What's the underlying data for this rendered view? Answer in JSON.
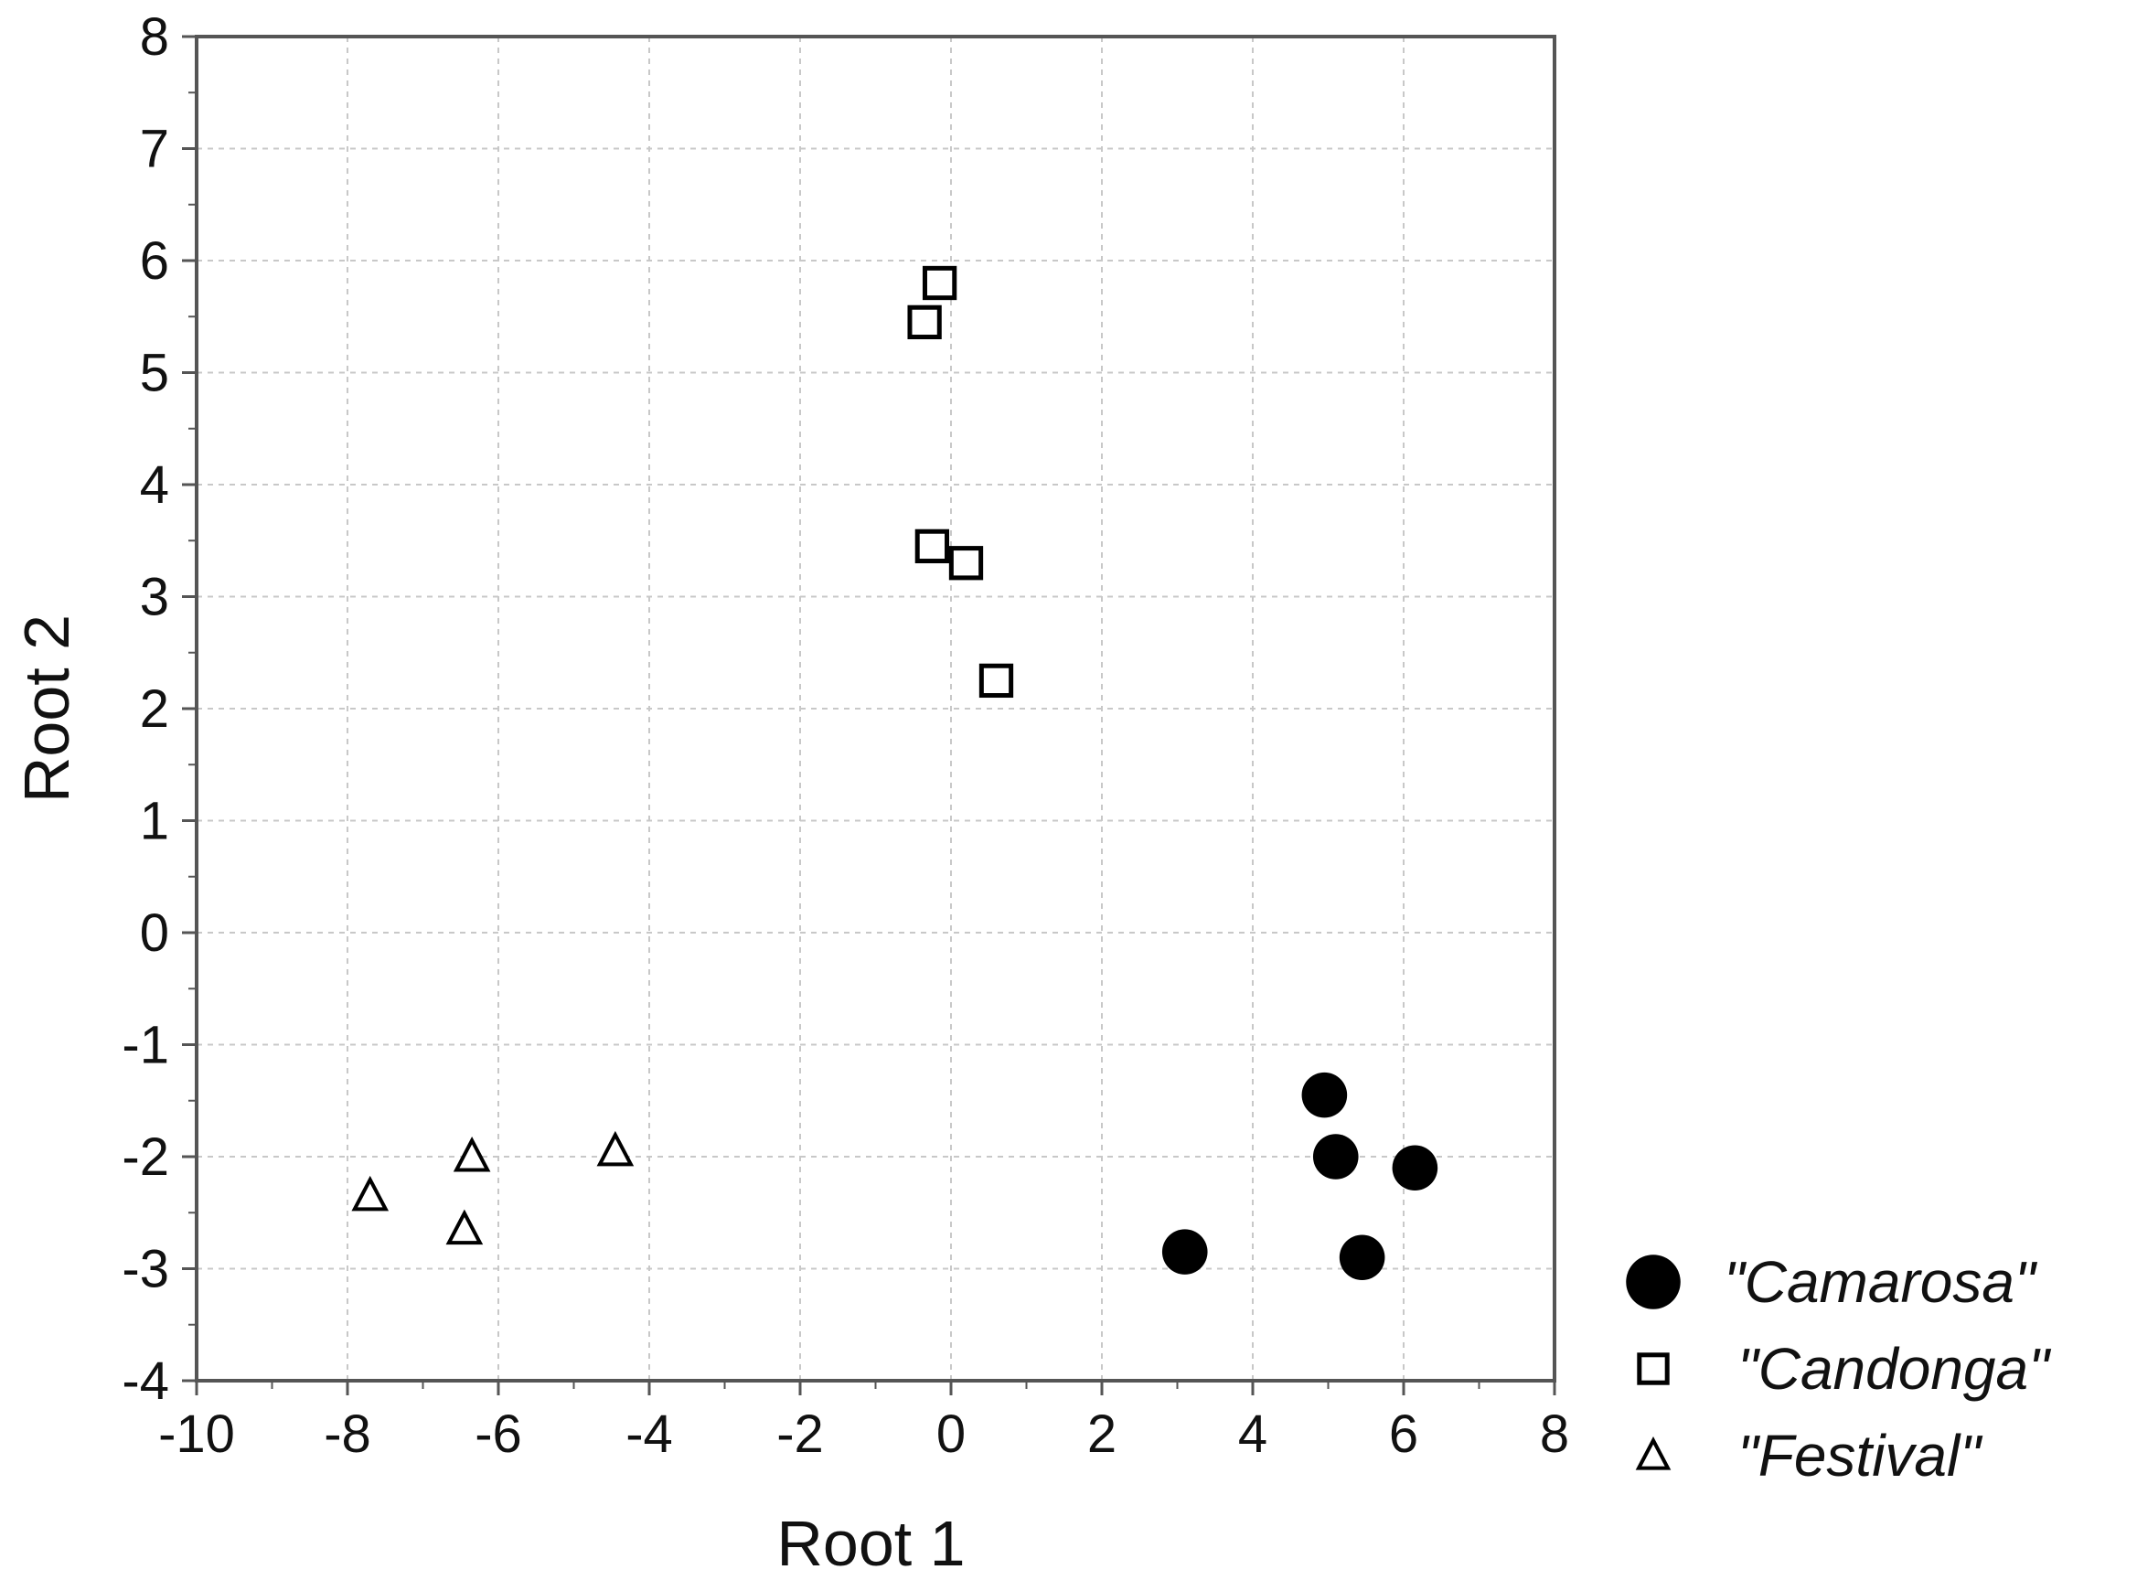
{
  "chart_data": {
    "type": "scatter",
    "title": "",
    "xlabel": "Root 1",
    "ylabel": "Root 2",
    "xlim": [
      -10,
      8
    ],
    "ylim": [
      -4,
      8
    ],
    "x_ticks": [
      -10,
      -8,
      -6,
      -4,
      -2,
      0,
      2,
      4,
      6,
      8
    ],
    "y_ticks": [
      -4,
      -3,
      -2,
      -1,
      0,
      1,
      2,
      3,
      4,
      5,
      6,
      7,
      8
    ],
    "x_tick_labels": [
      "-10",
      "-8",
      "-6",
      "-4",
      "-2",
      "0",
      "2",
      "4",
      "6",
      "8"
    ],
    "y_tick_labels": [
      "-4",
      "-3",
      "-2",
      "-1",
      "0",
      "1",
      "2",
      "3",
      "4",
      "5",
      "6",
      "7",
      "8"
    ],
    "grid": true,
    "legend_position": "bottom-right, outside plot",
    "series": [
      {
        "name": "\"Camarosa\"",
        "marker": "filled-circle",
        "color": "#000000",
        "points": [
          {
            "x": 4.95,
            "y": -1.45
          },
          {
            "x": 5.1,
            "y": -2.0
          },
          {
            "x": 6.15,
            "y": -2.1
          },
          {
            "x": 5.45,
            "y": -2.9
          },
          {
            "x": 3.1,
            "y": -2.85
          }
        ]
      },
      {
        "name": "\"Candonga\"",
        "marker": "open-square",
        "color": "#000000",
        "points": [
          {
            "x": -0.15,
            "y": 5.8
          },
          {
            "x": -0.35,
            "y": 5.45
          },
          {
            "x": -0.25,
            "y": 3.45
          },
          {
            "x": 0.2,
            "y": 3.3
          },
          {
            "x": 0.6,
            "y": 2.25
          }
        ]
      },
      {
        "name": "\"Festival\"",
        "marker": "open-triangle",
        "color": "#000000",
        "points": [
          {
            "x": -7.7,
            "y": -2.35
          },
          {
            "x": -6.35,
            "y": -2.0
          },
          {
            "x": -6.45,
            "y": -2.65
          },
          {
            "x": -4.45,
            "y": -1.95
          }
        ]
      }
    ]
  }
}
